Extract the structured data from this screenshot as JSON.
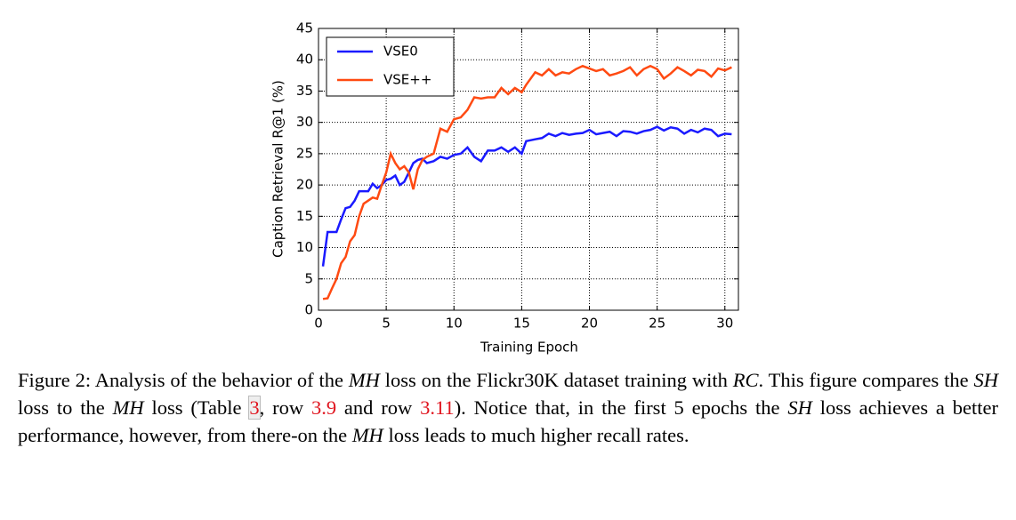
{
  "chart_data": {
    "type": "line",
    "xlabel": "Training Epoch",
    "ylabel": "Caption Retrieval R@1 (%)",
    "x": [
      0.33,
      0.67,
      1,
      1.33,
      1.67,
      2,
      2.33,
      2.67,
      3,
      3.33,
      3.67,
      4,
      4.33,
      4.67,
      5,
      5.33,
      5.67,
      6,
      6.33,
      6.67,
      7,
      7.33,
      7.67,
      8,
      8.5,
      9,
      9.5,
      10,
      10.5,
      11,
      11.5,
      12,
      12.5,
      13,
      13.5,
      14,
      14.5,
      15,
      15.33,
      16,
      16.5,
      17,
      17.5,
      18,
      18.5,
      19,
      19.5,
      20,
      20.5,
      21,
      21.5,
      22,
      22.5,
      23,
      23.5,
      24,
      24.5,
      25,
      25.5,
      26,
      26.5,
      27,
      27.5,
      28,
      28.5,
      29,
      29.5,
      30,
      30.5
    ],
    "series": [
      {
        "name": "VSE0",
        "color": "#1a1aff",
        "values": [
          7,
          12.5,
          12.5,
          12.5,
          14.5,
          16.3,
          16.5,
          17.5,
          19,
          19,
          19,
          20.2,
          19.5,
          20,
          20.8,
          21,
          21.5,
          20,
          20.5,
          22,
          23.5,
          24,
          24.2,
          23.5,
          23.8,
          24.5,
          24.2,
          24.8,
          25,
          26,
          24.5,
          23.8,
          25.5,
          25.5,
          26,
          25.3,
          26,
          25,
          27,
          27.3,
          27.5,
          28.2,
          27.8,
          28.3,
          28,
          28.2,
          28.3,
          28.8,
          28.1,
          28.3,
          28.5,
          27.8,
          28.6,
          28.5,
          28.2,
          28.6,
          28.8,
          29.3,
          28.7,
          29.2,
          29,
          28.2,
          28.8,
          28.4,
          29,
          28.8,
          27.8,
          28.2,
          28.1
        ]
      },
      {
        "name": "VSE++",
        "color": "#ff4a12",
        "values": [
          1.8,
          1.9,
          3.5,
          5,
          7.5,
          8.5,
          11,
          12,
          15,
          17,
          17.5,
          18,
          17.8,
          20,
          22,
          25,
          23.5,
          22.5,
          23,
          22,
          19.3,
          22.5,
          24,
          24.5,
          25,
          29,
          28.5,
          30.5,
          30.8,
          32,
          34,
          33.8,
          34,
          34,
          35.5,
          34.5,
          35.5,
          34.8,
          36,
          38,
          37.5,
          38.5,
          37.5,
          38,
          37.8,
          38.5,
          39,
          38.6,
          38.2,
          38.5,
          37.5,
          37.8,
          38.2,
          38.8,
          37.5,
          38.5,
          39,
          38.5,
          37,
          37.8,
          38.8,
          38.2,
          37.5,
          38.4,
          38.2,
          37.3,
          38.6,
          38.3,
          38.8
        ]
      }
    ],
    "xlim": [
      0,
      31
    ],
    "xticks": [
      0,
      5,
      10,
      15,
      20,
      25,
      30
    ],
    "ylim": [
      0,
      45
    ],
    "yticks": [
      0,
      5,
      10,
      15,
      20,
      25,
      30,
      35,
      40,
      45
    ],
    "grid": true,
    "legend": "upper left"
  },
  "caption": [
    "Figure 2: Analysis of the behavior of the ",
    "MH",
    " loss on the Flickr30K dataset training with ",
    "RC",
    ". This figure compares the ",
    "SH",
    " loss to the ",
    "MH",
    " loss (Table ",
    "3",
    ", row ",
    "3.9",
    " and row ",
    "3.11",
    "). Notice that, in the first 5 epochs the ",
    "SH",
    " loss achieves a better performance, however, from there-on the ",
    "MH",
    " loss leads to much higher recall rates."
  ]
}
